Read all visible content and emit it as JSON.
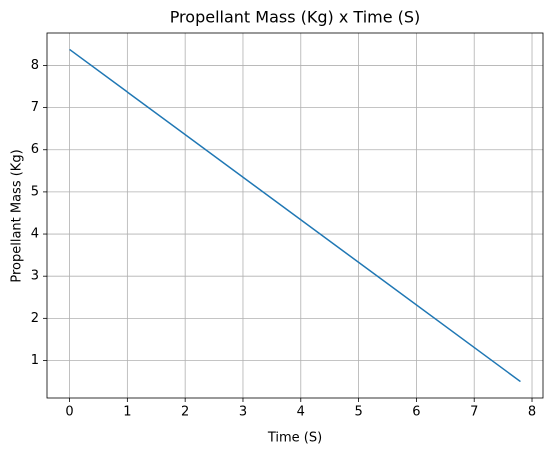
{
  "chart_data": {
    "type": "line",
    "title": "Propellant Mass (Kg) x Time (S)",
    "x_label": "Time (S)",
    "y_label": "Propellant Mass (Kg)",
    "x": [
      0,
      7.8
    ],
    "series": [
      {
        "name": "Propellant Mass",
        "color": "#1f77b4",
        "values": [
          8.38,
          0.5
        ]
      }
    ],
    "xlim": [
      -0.39,
      8.19
    ],
    "xticks": [
      0,
      1,
      2,
      3,
      4,
      5,
      6,
      7,
      8
    ],
    "ylim": [
      0.11,
      8.77
    ],
    "yticks": [
      1,
      2,
      3,
      4,
      5,
      6,
      7,
      8
    ],
    "grid": true
  }
}
